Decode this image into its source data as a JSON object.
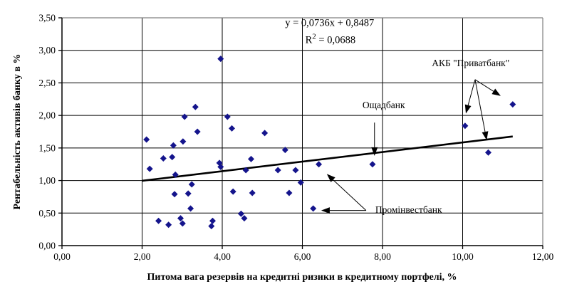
{
  "colors": {
    "marker": "#14148c",
    "trend_line": "#000000",
    "gridline": "#000000",
    "plot_border": "#808080",
    "axis": "#000000",
    "background": "#ffffff",
    "text": "#000000"
  },
  "chart_data": {
    "type": "scatter",
    "xlabel": "Питома вага резервів на кредитні ризики в кредитному портфелі, %",
    "ylabel": "Рентабельність активів банку в %",
    "xlim": [
      0,
      12
    ],
    "ylim": [
      0,
      3.5
    ],
    "grid": true,
    "legend": "none",
    "x_ticks": [
      {
        "value": 0,
        "label": "0,00"
      },
      {
        "value": 2,
        "label": "2,00"
      },
      {
        "value": 4,
        "label": "4,00"
      },
      {
        "value": 6,
        "label": "6,00"
      },
      {
        "value": 8,
        "label": "8,00"
      },
      {
        "value": 10,
        "label": "10,00"
      },
      {
        "value": 12,
        "label": "12,00"
      }
    ],
    "y_ticks": [
      {
        "value": 0.0,
        "label": "0,00"
      },
      {
        "value": 0.5,
        "label": "0,50"
      },
      {
        "value": 1.0,
        "label": "1,00"
      },
      {
        "value": 1.5,
        "label": "1,50"
      },
      {
        "value": 2.0,
        "label": "2,00"
      },
      {
        "value": 2.5,
        "label": "2,50"
      },
      {
        "value": 3.0,
        "label": "3,00"
      },
      {
        "value": 3.5,
        "label": "3,50"
      }
    ],
    "marker": {
      "shape": "diamond",
      "size": 9
    },
    "points": [
      [
        2.11,
        1.63
      ],
      [
        2.19,
        1.18
      ],
      [
        2.41,
        0.38
      ],
      [
        2.53,
        1.34
      ],
      [
        2.66,
        0.32
      ],
      [
        2.75,
        1.36
      ],
      [
        2.78,
        1.54
      ],
      [
        2.81,
        0.79
      ],
      [
        2.83,
        1.09
      ],
      [
        2.96,
        0.42
      ],
      [
        3.01,
        0.34
      ],
      [
        3.02,
        1.6
      ],
      [
        3.06,
        1.98
      ],
      [
        3.15,
        0.8
      ],
      [
        3.21,
        0.57
      ],
      [
        3.24,
        0.94
      ],
      [
        3.33,
        2.13
      ],
      [
        3.38,
        1.75
      ],
      [
        3.73,
        0.3
      ],
      [
        3.76,
        0.38
      ],
      [
        3.93,
        1.27
      ],
      [
        3.96,
        1.21
      ],
      [
        3.96,
        2.87
      ],
      [
        4.13,
        1.98
      ],
      [
        4.24,
        1.8
      ],
      [
        4.27,
        0.83
      ],
      [
        4.47,
        0.49
      ],
      [
        4.55,
        0.42
      ],
      [
        4.59,
        1.16
      ],
      [
        4.72,
        1.33
      ],
      [
        4.75,
        0.81
      ],
      [
        5.06,
        1.73
      ],
      [
        5.39,
        1.16
      ],
      [
        5.57,
        1.47
      ],
      [
        5.67,
        0.81
      ],
      [
        5.83,
        1.16
      ],
      [
        5.96,
        0.97
      ],
      [
        6.27,
        0.57
      ],
      [
        6.41,
        1.25
      ],
      [
        7.75,
        1.25
      ],
      [
        10.06,
        1.84
      ],
      [
        10.64,
        1.43
      ],
      [
        11.25,
        2.17
      ]
    ],
    "trendline": {
      "slope": 0.0736,
      "intercept": 0.8487,
      "x_start": 2.0,
      "x_end": 11.25,
      "equation": "y = 0,0736x + 0,8487",
      "r2_base": "R",
      "r2_sup": "2",
      "r2_rest": " = 0,0688",
      "label_pos": {
        "x": 6.68,
        "y": 3.41
      },
      "r2_pos": {
        "x": 6.7,
        "y": 3.15
      }
    },
    "annotations": [
      {
        "id": "privatbank",
        "label": "АКБ \"Приватбанк\"",
        "label_pos": {
          "x": 10.2,
          "y": 2.8
        },
        "label_anchor": "center",
        "arrow_origin": {
          "x": 10.31,
          "y": 2.55
        },
        "arrow_targets": [
          {
            "x": 10.08,
            "y": 2.03
          },
          {
            "x": 10.95,
            "y": 2.3
          },
          {
            "x": 10.6,
            "y": 1.62
          }
        ]
      },
      {
        "id": "oschadbank",
        "label": "Ощадбанк",
        "label_pos": {
          "x": 8.03,
          "y": 2.16
        },
        "label_anchor": "center",
        "arrow_origin": {
          "x": 7.8,
          "y": 1.89
        },
        "arrow_targets": [
          {
            "x": 7.8,
            "y": 1.38
          }
        ]
      },
      {
        "id": "prominvestbank",
        "label": "Промінвестбанк",
        "label_pos": {
          "x": 7.82,
          "y": 0.55
        },
        "label_anchor": "start",
        "arrow_origin": {
          "x": 7.59,
          "y": 0.54
        },
        "arrow_targets": [
          {
            "x": 6.61,
            "y": 1.1
          },
          {
            "x": 6.47,
            "y": 0.54
          }
        ]
      }
    ]
  }
}
